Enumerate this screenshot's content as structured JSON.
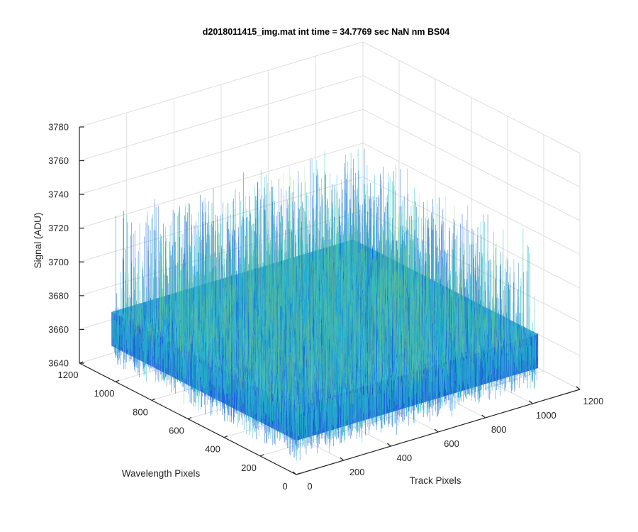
{
  "chart_data": {
    "type": "surface3d",
    "title": "d2018011415_img.mat int time = 34.7769 sec  NaN nm BS04",
    "xlabel": "Track Pixels",
    "ylabel": "Wavelength Pixels",
    "zlabel": "Signal (ADU)",
    "xlim": [
      0,
      1200
    ],
    "ylim": [
      0,
      1200
    ],
    "zlim": [
      3640,
      3780
    ],
    "xticks": [
      "0",
      "200",
      "400",
      "600",
      "800",
      "1000",
      "1200"
    ],
    "yticks": [
      "0",
      "200",
      "400",
      "600",
      "800",
      "1000",
      "1200"
    ],
    "zticks": [
      "3640",
      "3660",
      "3680",
      "3700",
      "3720",
      "3740",
      "3760",
      "3780"
    ],
    "surface_extent": {
      "x": [
        1,
        1024
      ],
      "y": [
        1,
        1024
      ]
    },
    "signal_mean": 3672,
    "signal_noise_range": [
      3645,
      3740
    ],
    "grid": true,
    "colormap": "parula",
    "colors": {
      "surface_dark": "#0f5bd6",
      "surface_mid": "#1a9ad4",
      "surface_light": "#29c0c8",
      "surface_peak": "#88d070"
    }
  }
}
